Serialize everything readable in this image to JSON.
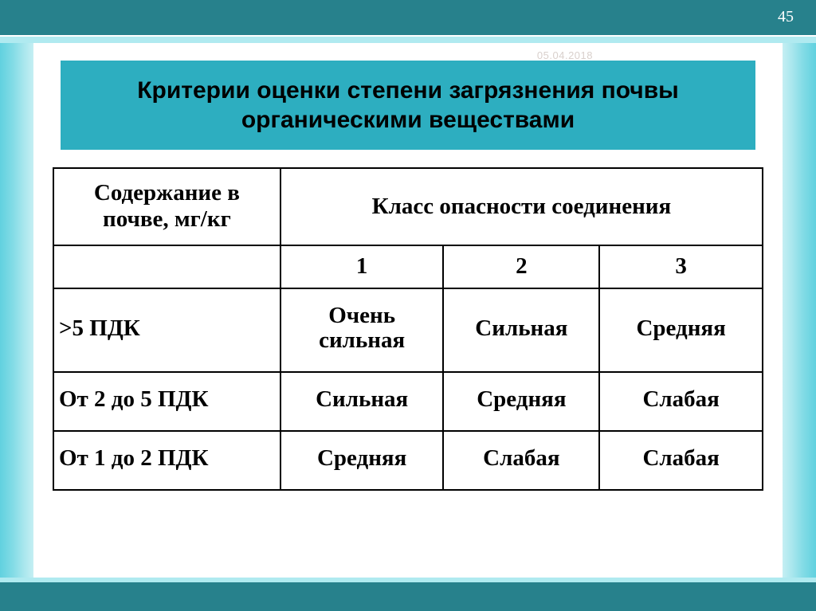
{
  "slide": {
    "page_number": "45",
    "watermark_date": "05.04.2018",
    "title": "Критерии оценки степени загрязнения почвы органическими веществами",
    "colors": {
      "band_dark": "#27818c",
      "band_light": "#b0eaf0",
      "title_bg": "#2daec0",
      "gradient_from": "#61d1df",
      "gradient_to": "#c5eff3",
      "border": "#000000",
      "text": "#000000",
      "page_num_color": "#ffffff",
      "watermark_color": "#d9d0cc"
    },
    "fonts": {
      "title_family": "Verdana",
      "title_size_pt": 22,
      "title_weight": "bold",
      "table_family": "Times New Roman",
      "table_size_pt": 22,
      "table_weight_header": "bold",
      "table_weight_cell": "bold"
    }
  },
  "table": {
    "type": "table",
    "col_widths_pct": [
      32,
      23,
      22,
      23
    ],
    "header": {
      "row_label": "Содержание в почве, мг/кг",
      "group_label": "Класс опасности соединения",
      "class_numbers": [
        "1",
        "2",
        "3"
      ]
    },
    "rows": [
      {
        "label": ">5 ПДК",
        "cells": [
          "Очень сильная",
          "Сильная",
          "Средняя"
        ]
      },
      {
        "label": "От 2 до 5 ПДК",
        "cells": [
          "Сильная",
          "Средняя",
          "Слабая"
        ]
      },
      {
        "label": "От 1 до 2 ПДК",
        "cells": [
          "Средняя",
          "Слабая",
          "Слабая"
        ]
      }
    ]
  }
}
